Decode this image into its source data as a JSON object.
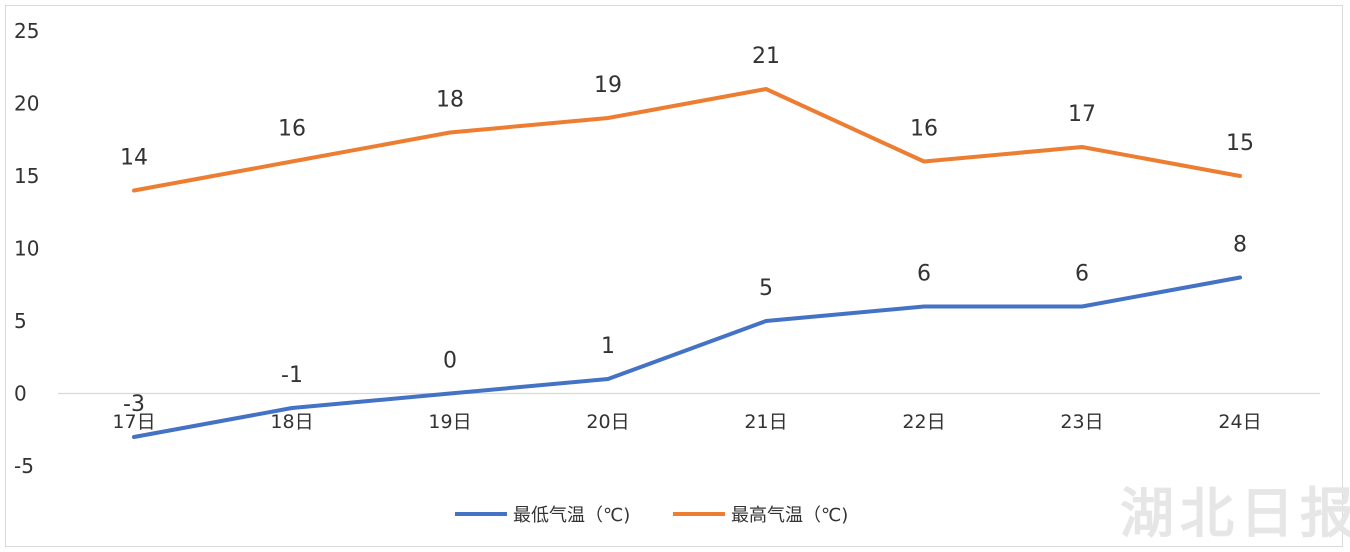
{
  "chart_data": {
    "type": "line",
    "categories": [
      "17日",
      "18日",
      "19日",
      "20日",
      "21日",
      "22日",
      "23日",
      "24日"
    ],
    "series": [
      {
        "name": "最低气温（℃)",
        "values": [
          -3,
          -1,
          0,
          1,
          5,
          6,
          6,
          8
        ],
        "color": "#4472c4"
      },
      {
        "name": "最高气温（℃)",
        "values": [
          14,
          16,
          18,
          19,
          21,
          16,
          17,
          15
        ],
        "color": "#ed7d31"
      }
    ],
    "y_ticks": [
      "-5",
      "0",
      "5",
      "10",
      "15",
      "20",
      "25"
    ],
    "ylim": [
      -5,
      25
    ],
    "grid": false,
    "legend_position": "bottom",
    "data_labels": true
  },
  "watermark": {
    "text": "湖北日报"
  }
}
